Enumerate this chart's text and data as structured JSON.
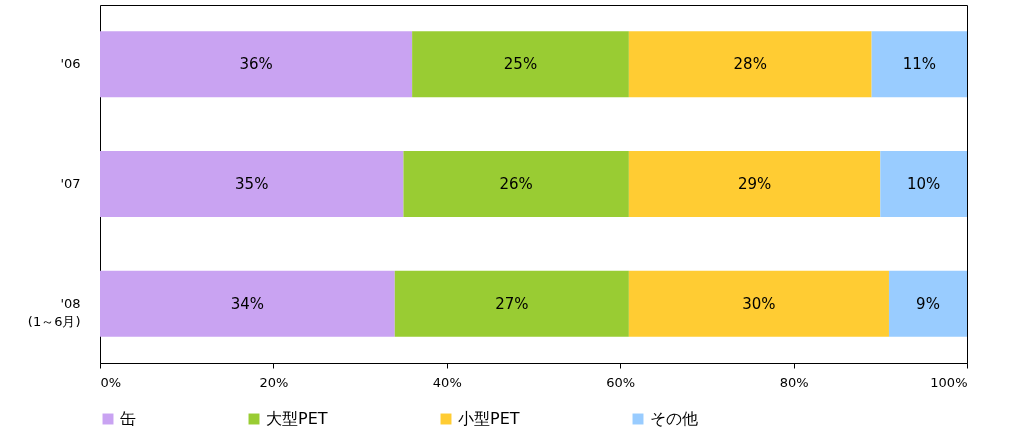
{
  "chart_data": {
    "type": "bar",
    "orientation": "horizontal",
    "stacked": true,
    "categories": [
      "'06",
      "'07",
      "'08\n(1～6月)"
    ],
    "series": [
      {
        "name": "缶",
        "color": "#c9a3f2",
        "values": [
          36,
          35,
          34
        ],
        "value_labels": [
          "36%",
          "35%",
          "34%"
        ]
      },
      {
        "name": "大型PET",
        "color": "#99cc33",
        "values": [
          25,
          26,
          27
        ],
        "value_labels": [
          "25%",
          "26%",
          "27%"
        ]
      },
      {
        "name": "小型PET",
        "color": "#ffcc33",
        "values": [
          28,
          29,
          30
        ],
        "value_labels": [
          "28%",
          "29%",
          "30%"
        ]
      },
      {
        "name": "その他",
        "color": "#99ccff",
        "values": [
          11,
          10,
          9
        ],
        "value_labels": [
          "11%",
          "10%",
          "9%"
        ]
      }
    ],
    "xlim": [
      0,
      100
    ],
    "xticks": [
      {
        "value": 0,
        "label": "0%"
      },
      {
        "value": 20,
        "label": "20%"
      },
      {
        "value": 40,
        "label": "40%"
      },
      {
        "value": 60,
        "label": "60%"
      },
      {
        "value": 80,
        "label": "80%"
      },
      {
        "value": 100,
        "label": "100%"
      }
    ],
    "grid": false,
    "legend": "bottom"
  }
}
